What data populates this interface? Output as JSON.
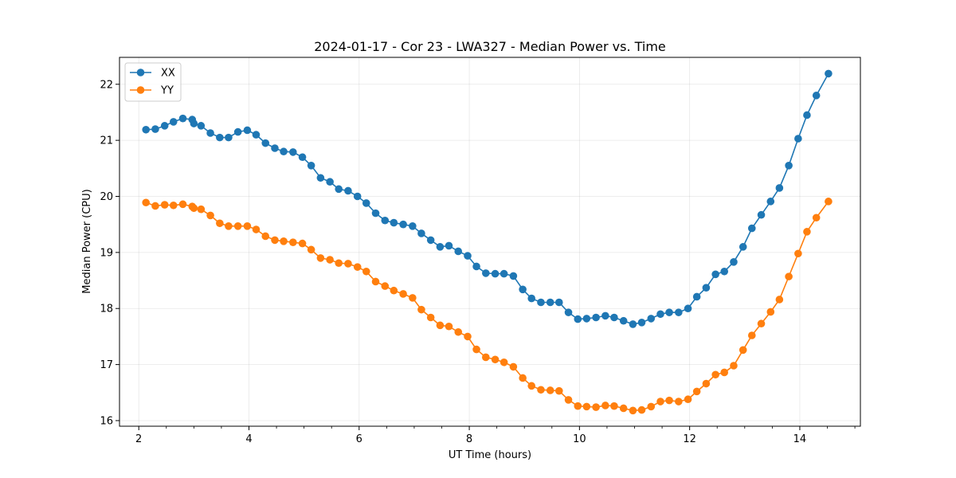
{
  "chart_data": {
    "type": "line",
    "title": "2024-01-17 - Cor 23 - LWA327 - Median Power vs. Time",
    "xlabel": "UT Time (hours)",
    "ylabel": "Median Power (CPU)",
    "xlim": [
      1.65,
      15.1
    ],
    "ylim": [
      15.9,
      22.48
    ],
    "xticks": [
      2,
      4,
      6,
      8,
      10,
      12,
      14
    ],
    "yticks": [
      16,
      17,
      18,
      19,
      20,
      21,
      22
    ],
    "grid": true,
    "legend_position": "top-left",
    "colors": {
      "XX": "#1f77b4",
      "YY": "#ff7f0e"
    },
    "x": [
      2.13,
      2.3,
      2.47,
      2.63,
      2.8,
      2.97,
      3.0,
      3.13,
      3.3,
      3.47,
      3.63,
      3.8,
      3.97,
      4.13,
      4.3,
      4.47,
      4.63,
      4.8,
      4.97,
      5.13,
      5.3,
      5.47,
      5.63,
      5.8,
      5.97,
      6.13,
      6.3,
      6.47,
      6.63,
      6.8,
      6.97,
      7.13,
      7.3,
      7.47,
      7.63,
      7.8,
      7.97,
      8.13,
      8.3,
      8.47,
      8.63,
      8.8,
      8.97,
      9.13,
      9.3,
      9.47,
      9.63,
      9.8,
      9.97,
      10.13,
      10.3,
      10.47,
      10.63,
      10.8,
      10.97,
      11.13,
      11.3,
      11.47,
      11.63,
      11.8,
      11.97,
      12.13,
      12.3,
      12.47,
      12.63,
      12.8,
      12.97,
      13.13,
      13.3,
      13.47,
      13.63,
      13.8,
      13.97,
      14.13,
      14.3,
      14.52
    ],
    "series": [
      {
        "name": "XX",
        "values": [
          21.19,
          21.2,
          21.26,
          21.33,
          21.39,
          21.37,
          21.3,
          21.26,
          21.13,
          21.05,
          21.05,
          21.15,
          21.18,
          21.1,
          20.95,
          20.86,
          20.8,
          20.79,
          20.7,
          20.55,
          20.33,
          20.26,
          20.13,
          20.1,
          20.0,
          19.88,
          19.7,
          19.57,
          19.53,
          19.5,
          19.47,
          19.34,
          19.22,
          19.1,
          19.12,
          19.02,
          18.94,
          18.75,
          18.63,
          18.62,
          18.62,
          18.58,
          18.34,
          18.18,
          18.11,
          18.11,
          18.11,
          17.93,
          17.81,
          17.82,
          17.84,
          17.87,
          17.84,
          17.78,
          17.72,
          17.75,
          17.82,
          17.9,
          17.93,
          17.93,
          18.0,
          18.21,
          18.37,
          18.61,
          18.66,
          18.83,
          19.1,
          19.43,
          19.67,
          19.91,
          20.15,
          20.55,
          21.03,
          21.45,
          21.8,
          22.19
        ]
      },
      {
        "name": "YY",
        "values": [
          19.89,
          19.83,
          19.85,
          19.84,
          19.86,
          19.82,
          19.79,
          19.77,
          19.66,
          19.52,
          19.47,
          19.47,
          19.47,
          19.41,
          19.29,
          19.22,
          19.2,
          19.18,
          19.16,
          19.05,
          18.9,
          18.87,
          18.81,
          18.8,
          18.74,
          18.66,
          18.48,
          18.4,
          18.32,
          18.26,
          18.19,
          17.98,
          17.84,
          17.7,
          17.68,
          17.58,
          17.5,
          17.27,
          17.13,
          17.09,
          17.04,
          16.96,
          16.76,
          16.62,
          16.55,
          16.54,
          16.53,
          16.37,
          16.26,
          16.25,
          16.24,
          16.27,
          16.26,
          16.22,
          16.18,
          16.19,
          16.25,
          16.34,
          16.36,
          16.34,
          16.38,
          16.52,
          16.66,
          16.82,
          16.86,
          16.98,
          17.26,
          17.52,
          17.73,
          17.94,
          18.16,
          18.57,
          18.98,
          19.37,
          19.62,
          19.91
        ]
      }
    ]
  }
}
